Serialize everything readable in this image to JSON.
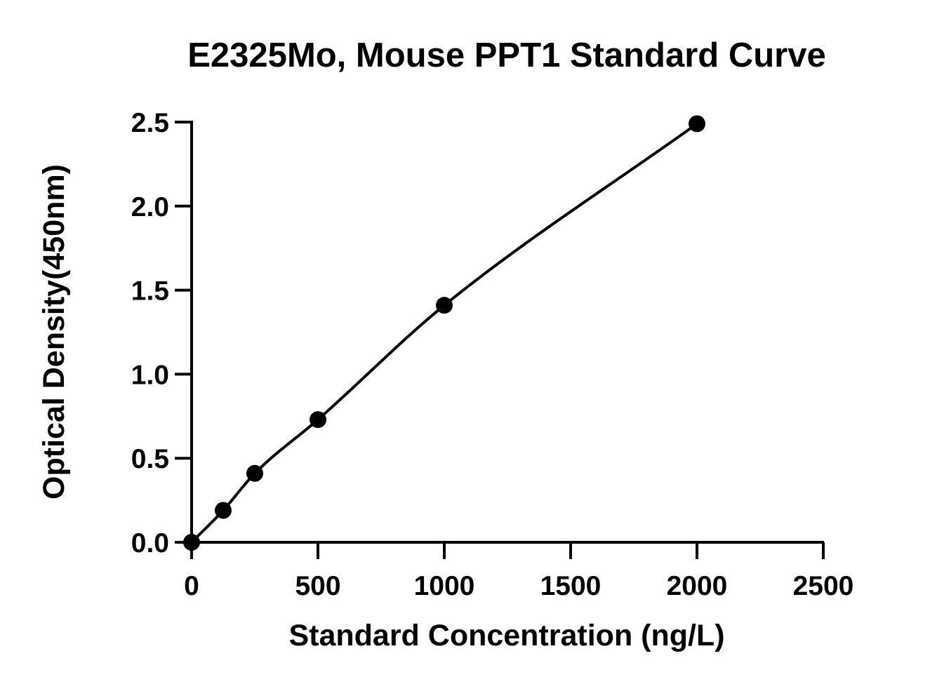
{
  "chart_data": {
    "type": "scatter",
    "title": "E2325Mo, Mouse PPT1 Standard Curve",
    "xlabel": "Standard Concentration (ng/L)",
    "ylabel": "Optical Density(450nm)",
    "xlim": [
      0,
      2500
    ],
    "ylim": [
      0,
      2.5
    ],
    "x_ticks": [
      0,
      500,
      1000,
      1500,
      2000,
      2500
    ],
    "y_ticks": [
      0.0,
      0.5,
      1.0,
      1.5,
      2.0,
      2.5
    ],
    "x_tick_labels": [
      "0",
      "500",
      "1000",
      "1500",
      "2000",
      "2500"
    ],
    "y_tick_labels": [
      "0.0",
      "0.5",
      "1.0",
      "1.5",
      "2.0",
      "2.5"
    ],
    "grid": false,
    "series": [
      {
        "x": [
          0,
          125,
          250,
          500,
          1000,
          2000
        ],
        "y": [
          0.0,
          0.19,
          0.41,
          0.73,
          1.41,
          2.49
        ],
        "fit": "smooth-curve",
        "color": "#000000"
      }
    ]
  }
}
